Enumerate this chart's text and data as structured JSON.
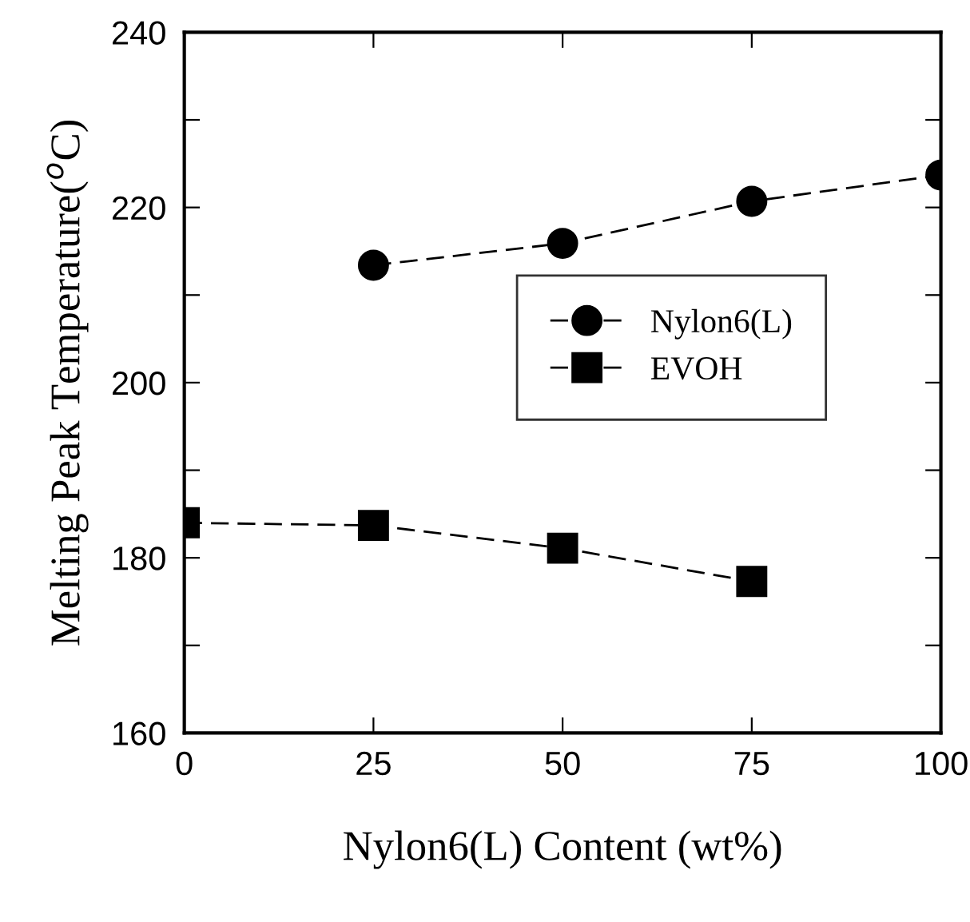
{
  "chart_data": {
    "type": "line",
    "xlabel": "Nylon6(L) Content (wt%)",
    "ylabel": "Melting Peak Temperature($^{o}$C)",
    "xlim": [
      0,
      100
    ],
    "xticks": [
      0,
      25,
      50,
      75,
      100
    ],
    "ylim": [
      160,
      240
    ],
    "yticks": [
      160,
      {
        "value": 170,
        "label": null
      },
      180,
      {
        "value": 190,
        "label": null
      },
      200,
      {
        "value": 210,
        "label": null
      },
      220,
      {
        "value": 230,
        "label": null
      },
      240
    ],
    "grid": false,
    "legend": "right",
    "line_style": "dashed",
    "series": [
      {
        "name": "Nylon6(L)",
        "color": "#000000",
        "marker": "circle",
        "x": [
          25,
          50,
          75,
          100
        ],
        "values": [
          213.4,
          215.9,
          220.7,
          223.7
        ]
      },
      {
        "name": "EVOH",
        "color": "#000000",
        "marker": "square",
        "x": [
          0,
          25,
          50,
          75
        ],
        "values": [
          184.0,
          183.7,
          181.1,
          177.3
        ]
      }
    ]
  }
}
